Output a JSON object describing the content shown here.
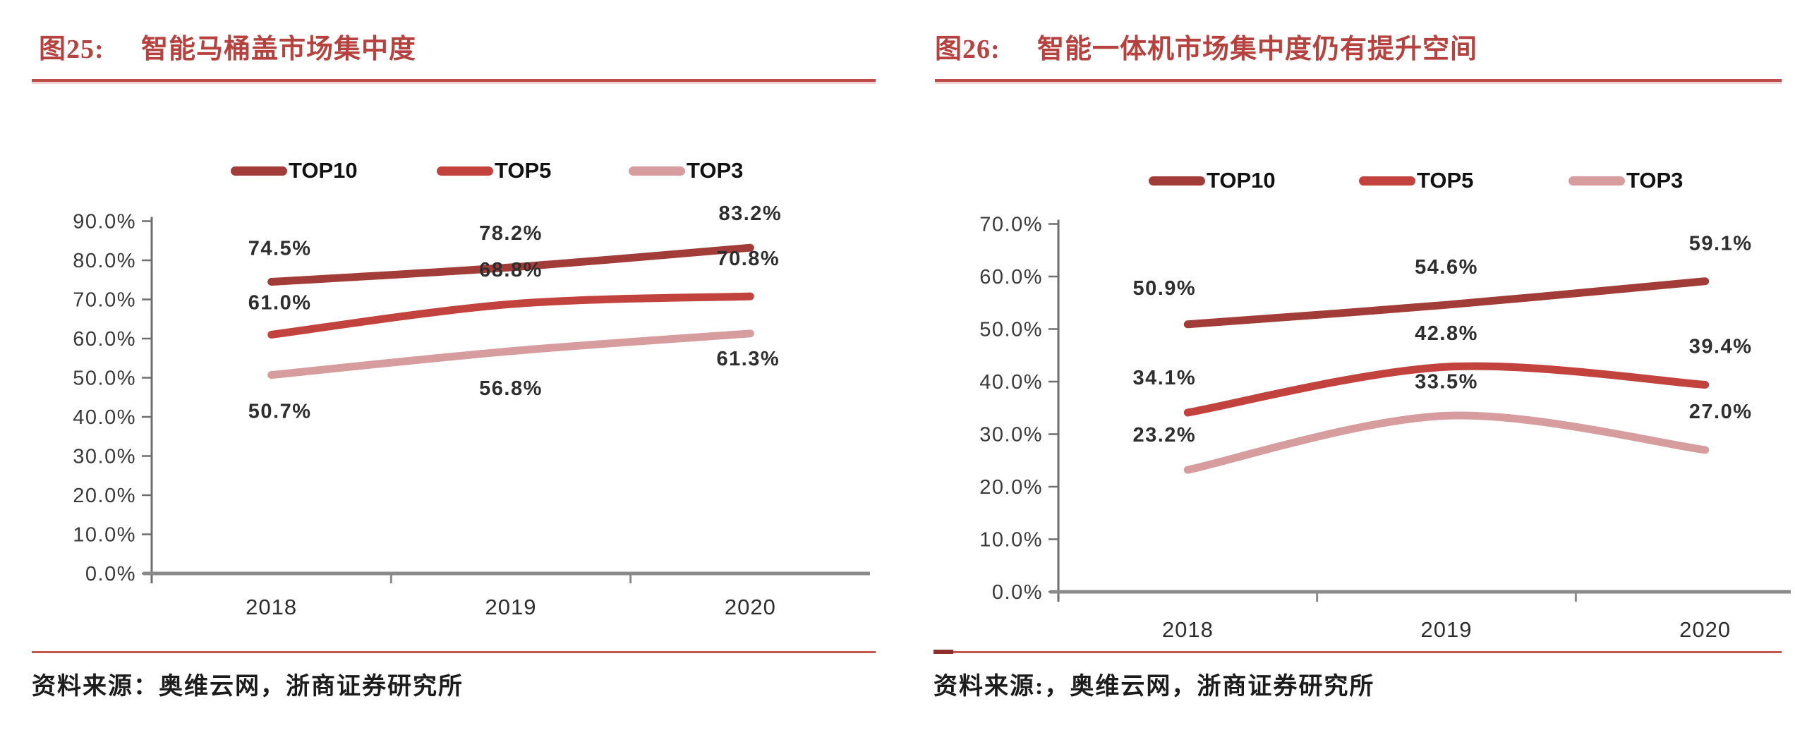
{
  "figures": [
    {
      "label": "图25:",
      "title": "智能马桶盖市场集中度",
      "source": "资料来源：奥维云网，浙商证券研究所"
    },
    {
      "label": "图26:",
      "title": "智能一体机市场集中度仍有提升空间",
      "source": "资料来源:，奥维云网，浙商证券研究所"
    }
  ],
  "chart_data": [
    {
      "type": "line",
      "title": "智能马桶盖市场集中度",
      "categories": [
        "2018",
        "2019",
        "2020"
      ],
      "series": [
        {
          "name": "TOP10",
          "values": [
            74.5,
            78.2,
            83.2
          ],
          "labels": [
            "74.5%",
            "78.2%",
            "83.2%"
          ],
          "color": "#A23C38"
        },
        {
          "name": "TOP5",
          "values": [
            61.0,
            68.8,
            70.8
          ],
          "labels": [
            "61.0%",
            "68.8%",
            "70.8%"
          ],
          "color": "#C2423D"
        },
        {
          "name": "TOP3",
          "values": [
            50.7,
            56.8,
            61.3
          ],
          "labels": [
            "50.7%",
            "56.8%",
            "61.3%"
          ],
          "color": "#D79C9E"
        }
      ],
      "ylim": [
        0,
        90
      ],
      "yticks": [
        "0.0%",
        "10.0%",
        "20.0%",
        "30.0%",
        "40.0%",
        "50.0%",
        "60.0%",
        "70.0%",
        "80.0%",
        "90.0%"
      ],
      "grid": false,
      "smooth": true,
      "legend_position": "top",
      "legend": [
        "TOP10",
        "TOP5",
        "TOP3"
      ]
    },
    {
      "type": "line",
      "title": "智能一体机市场集中度仍有提升空间",
      "categories": [
        "2018",
        "2019",
        "2020"
      ],
      "series": [
        {
          "name": "TOP10",
          "values": [
            50.9,
            54.6,
            59.1
          ],
          "labels": [
            "50.9%",
            "54.6%",
            "59.1%"
          ],
          "color": "#A23C38"
        },
        {
          "name": "TOP5",
          "values": [
            34.1,
            42.8,
            39.4
          ],
          "labels": [
            "34.1%",
            "42.8%",
            "39.4%"
          ],
          "color": "#C2423D"
        },
        {
          "name": "TOP3",
          "values": [
            23.2,
            33.5,
            27.0
          ],
          "labels": [
            "23.2%",
            "33.5%",
            "27.0%"
          ],
          "color": "#D79C9E"
        }
      ],
      "ylim": [
        0,
        70
      ],
      "yticks": [
        "0.0%",
        "10.0%",
        "20.0%",
        "30.0%",
        "40.0%",
        "50.0%",
        "60.0%",
        "70.0%"
      ],
      "grid": false,
      "smooth": true,
      "legend_position": "top",
      "legend": [
        "TOP10",
        "TOP5",
        "TOP3"
      ]
    }
  ],
  "colors": {
    "title_red": "#B5423E",
    "rule_red": "#BE4B47",
    "bottom_rule_red": "#C25650",
    "bottom_rule_dark_dash": "#8E2F2B",
    "x_axis": "#8A8A8A",
    "y_axis": "#6E6E6E",
    "tick_text": "#3A3A3A",
    "data_label_text": "#2E2E2E",
    "legend_text": "#111111",
    "source_text": "#1C1C1C",
    "series_top10": "#A23C38",
    "series_top5": "#C2423D",
    "series_top3": "#D79C9E"
  }
}
